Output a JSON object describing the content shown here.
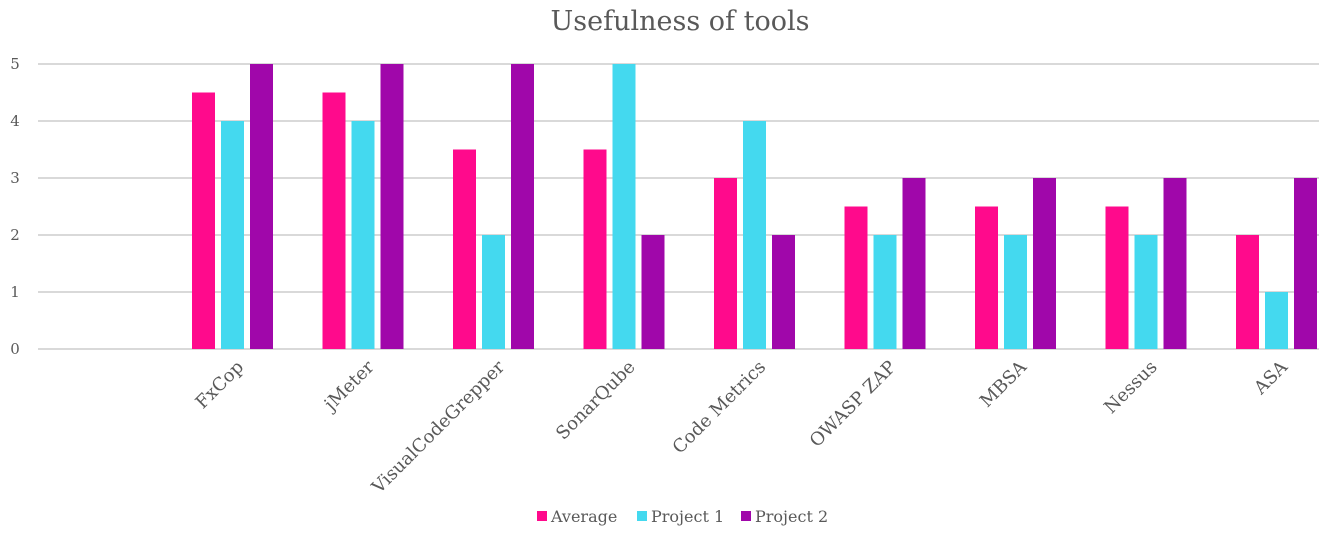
{
  "chart_data": {
    "type": "bar",
    "title": "Usefulness of tools",
    "xlabel": "",
    "ylabel": "",
    "ylim": [
      0,
      5
    ],
    "yticks": [
      0,
      1,
      2,
      3,
      4,
      5
    ],
    "grid": true,
    "legend_position": "bottom",
    "categories": [
      "FxCop",
      "jMeter",
      "VisualCodeGrepper",
      "SonarQube",
      "Code Metrics",
      "OWASP ZAP",
      "MBSA",
      "Nessus",
      "ASA"
    ],
    "series": [
      {
        "name": "Average",
        "color": "#FF0A8C",
        "values": [
          4.5,
          4.5,
          3.5,
          3.5,
          3,
          2.5,
          2.5,
          2.5,
          2
        ]
      },
      {
        "name": "Project 1",
        "color": "#44D9EF",
        "values": [
          4,
          4,
          2,
          5,
          4,
          2,
          2,
          2,
          1
        ]
      },
      {
        "name": "Project 2",
        "color": "#A007AA",
        "values": [
          5,
          5,
          5,
          2,
          2,
          3,
          3,
          3,
          3
        ]
      }
    ]
  }
}
